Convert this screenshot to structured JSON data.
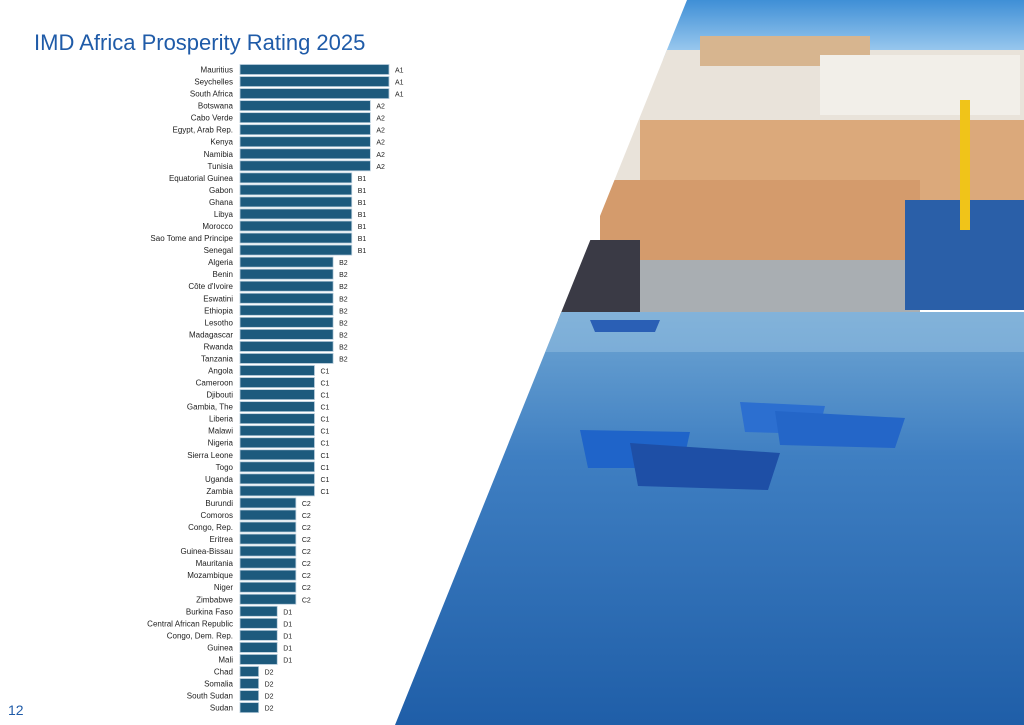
{
  "page": {
    "title": "IMD Africa Prosperity Rating 2025",
    "page_number": "12"
  },
  "colors": {
    "title": "#1f5ba8",
    "bar": "#1d5a7d",
    "bar_outline": "#b9cedc",
    "label": "#222222"
  },
  "photo": {
    "content": "harbour-with-blue-boats-and-kasbah"
  },
  "chart_data": {
    "type": "bar",
    "orientation": "horizontal",
    "title": "IMD Africa Prosperity Rating 2025",
    "value_scale": {
      "A1": 8,
      "A2": 7,
      "B1": 6,
      "B2": 5,
      "C1": 4,
      "C2": 3,
      "D1": 2,
      "D2": 1
    },
    "xlim": [
      0,
      8
    ],
    "grid": false,
    "legend": "none",
    "categories": [
      "Mauritius",
      "Seychelles",
      "South Africa",
      "Botswana",
      "Cabo Verde",
      "Egypt, Arab Rep.",
      "Kenya",
      "Namibia",
      "Tunisia",
      "Equatorial Guinea",
      "Gabon",
      "Ghana",
      "Libya",
      "Morocco",
      "Sao Tome and Principe",
      "Senegal",
      "Algeria",
      "Benin",
      "Côte d'Ivoire",
      "Eswatini",
      "Ethiopia",
      "Lesotho",
      "Madagascar",
      "Rwanda",
      "Tanzania",
      "Angola",
      "Cameroon",
      "Djibouti",
      "Gambia, The",
      "Liberia",
      "Malawi",
      "Nigeria",
      "Sierra Leone",
      "Togo",
      "Uganda",
      "Zambia",
      "Burundi",
      "Comoros",
      "Congo, Rep.",
      "Eritrea",
      "Guinea-Bissau",
      "Mauritania",
      "Mozambique",
      "Niger",
      "Zimbabwe",
      "Burkina Faso",
      "Central African Republic",
      "Congo, Dem. Rep.",
      "Guinea",
      "Mali",
      "Chad",
      "Somalia",
      "South Sudan",
      "Sudan"
    ],
    "ratings": [
      "A1",
      "A1",
      "A1",
      "A2",
      "A2",
      "A2",
      "A2",
      "A2",
      "A2",
      "B1",
      "B1",
      "B1",
      "B1",
      "B1",
      "B1",
      "B1",
      "B2",
      "B2",
      "B2",
      "B2",
      "B2",
      "B2",
      "B2",
      "B2",
      "B2",
      "C1",
      "C1",
      "C1",
      "C1",
      "C1",
      "C1",
      "C1",
      "C1",
      "C1",
      "C1",
      "C1",
      "C2",
      "C2",
      "C2",
      "C2",
      "C2",
      "C2",
      "C2",
      "C2",
      "C2",
      "D1",
      "D1",
      "D1",
      "D1",
      "D1",
      "D2",
      "D2",
      "D2",
      "D2"
    ]
  }
}
